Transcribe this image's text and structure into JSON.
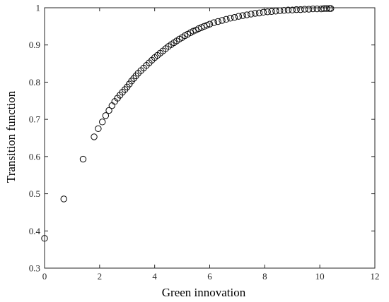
{
  "chart_data": {
    "type": "scatter",
    "xlabel": "Green innovation",
    "ylabel": "Transition function",
    "xlim": [
      0,
      12
    ],
    "ylim": [
      0.3,
      1
    ],
    "xticks": [
      "0",
      "2",
      "4",
      "6",
      "8",
      "10",
      "12"
    ],
    "yticks": [
      "0.3",
      "0.4",
      "0.5",
      "0.6",
      "0.7",
      "0.8",
      "0.9",
      "1"
    ],
    "grid": false,
    "marker": "open-circle",
    "color": "#000000",
    "points": [
      [
        0.0,
        0.38
      ],
      [
        0.7,
        0.486
      ],
      [
        1.4,
        0.593
      ],
      [
        1.8,
        0.653
      ],
      [
        1.95,
        0.675
      ],
      [
        2.1,
        0.693
      ],
      [
        2.22,
        0.71
      ],
      [
        2.34,
        0.724
      ],
      [
        2.45,
        0.737
      ],
      [
        2.55,
        0.748
      ],
      [
        2.65,
        0.757
      ],
      [
        2.74,
        0.765
      ],
      [
        2.83,
        0.773
      ],
      [
        2.92,
        0.78
      ],
      [
        3.0,
        0.787
      ],
      [
        3.08,
        0.795
      ],
      [
        3.16,
        0.803
      ],
      [
        3.24,
        0.81
      ],
      [
        3.32,
        0.817
      ],
      [
        3.4,
        0.824
      ],
      [
        3.5,
        0.831
      ],
      [
        3.6,
        0.838
      ],
      [
        3.7,
        0.845
      ],
      [
        3.8,
        0.852
      ],
      [
        3.9,
        0.859
      ],
      [
        4.0,
        0.866
      ],
      [
        4.1,
        0.872
      ],
      [
        4.2,
        0.878
      ],
      [
        4.3,
        0.884
      ],
      [
        4.4,
        0.89
      ],
      [
        4.5,
        0.896
      ],
      [
        4.6,
        0.901
      ],
      [
        4.7,
        0.906
      ],
      [
        4.8,
        0.911
      ],
      [
        4.9,
        0.916
      ],
      [
        5.0,
        0.92
      ],
      [
        5.1,
        0.925
      ],
      [
        5.2,
        0.929
      ],
      [
        5.3,
        0.933
      ],
      [
        5.4,
        0.937
      ],
      [
        5.5,
        0.94
      ],
      [
        5.6,
        0.944
      ],
      [
        5.7,
        0.947
      ],
      [
        5.8,
        0.95
      ],
      [
        5.9,
        0.953
      ],
      [
        6.0,
        0.956
      ],
      [
        6.15,
        0.96
      ],
      [
        6.3,
        0.963
      ],
      [
        6.45,
        0.966
      ],
      [
        6.6,
        0.969
      ],
      [
        6.75,
        0.972
      ],
      [
        6.9,
        0.974
      ],
      [
        7.05,
        0.977
      ],
      [
        7.2,
        0.979
      ],
      [
        7.35,
        0.981
      ],
      [
        7.5,
        0.983
      ],
      [
        7.65,
        0.985
      ],
      [
        7.8,
        0.986
      ],
      [
        7.95,
        0.988
      ],
      [
        8.1,
        0.989
      ],
      [
        8.25,
        0.99
      ],
      [
        8.4,
        0.991
      ],
      [
        8.55,
        0.992
      ],
      [
        8.7,
        0.993
      ],
      [
        8.85,
        0.994
      ],
      [
        9.0,
        0.994
      ],
      [
        9.15,
        0.995
      ],
      [
        9.3,
        0.995
      ],
      [
        9.45,
        0.996
      ],
      [
        9.6,
        0.996
      ],
      [
        9.75,
        0.997
      ],
      [
        9.9,
        0.997
      ],
      [
        10.05,
        0.997
      ],
      [
        10.15,
        0.998
      ],
      [
        10.25,
        0.998
      ],
      [
        10.35,
        0.998
      ],
      [
        10.4,
        0.998
      ]
    ]
  }
}
